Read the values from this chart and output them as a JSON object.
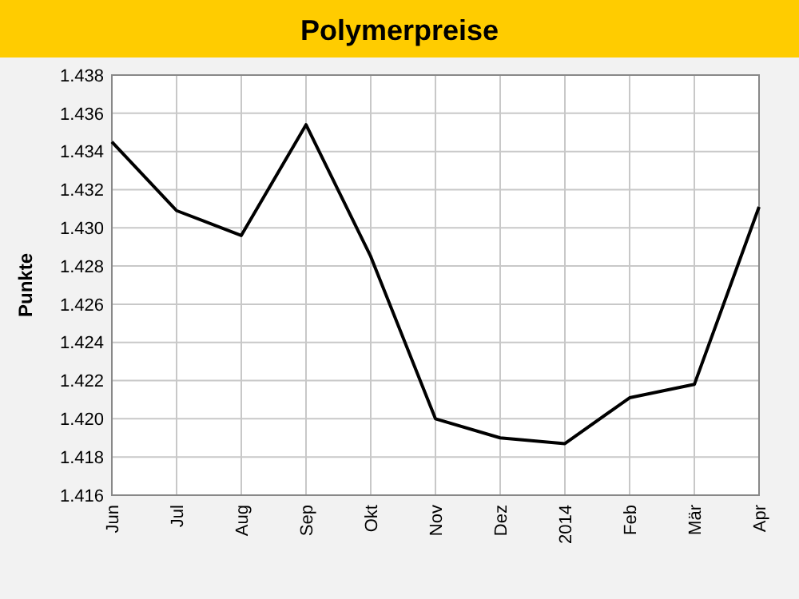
{
  "chart_data": {
    "type": "line",
    "title": "Polymerpreise",
    "ylabel": "Punkte",
    "categories": [
      "Jun",
      "Jul",
      "Aug",
      "Sep",
      "Okt",
      "Nov",
      "Dez",
      "2014",
      "Feb",
      "Mär",
      "Apr"
    ],
    "series": [
      {
        "color": "#000000",
        "values": [
          1.4345,
          1.4309,
          1.4296,
          1.4354,
          1.4285,
          1.42,
          1.419,
          1.4187,
          1.4211,
          1.4218,
          1.4311
        ]
      }
    ],
    "ylim": [
      1.416,
      1.438
    ],
    "yticks": [
      1.416,
      1.418,
      {
        "value": 1.42,
        "label": "1.420"
      },
      1.422,
      1.424,
      1.426,
      1.428,
      {
        "value": 1.43,
        "label": "1.430"
      },
      1.432,
      1.434,
      1.436,
      1.438
    ],
    "grid": true,
    "marker": "none",
    "line_style": "solid"
  }
}
